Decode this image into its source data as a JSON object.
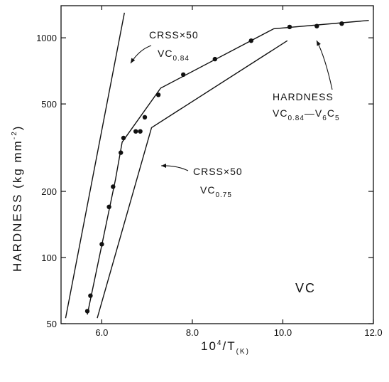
{
  "chart_data": {
    "type": "line",
    "xlabel": "10^4/T(K)",
    "ylabel": "HARDNESS (kg mm^-2)",
    "xlim": [
      5.1,
      12.0
    ],
    "ylim": [
      50,
      1400
    ],
    "y_scale": "log",
    "grid": false,
    "x_ticks": [
      {
        "value": 6.0,
        "label": "6.0"
      },
      {
        "value": 8.0,
        "label": "8.0"
      },
      {
        "value": 10.0,
        "label": "10.0"
      },
      {
        "value": 12.0,
        "label": "12.0"
      }
    ],
    "y_ticks": [
      {
        "value": 50,
        "label": "50"
      },
      {
        "value": 100,
        "label": "100"
      },
      {
        "value": 200,
        "label": "200"
      },
      {
        "value": 500,
        "label": "500"
      },
      {
        "value": 1000,
        "label": "1000"
      }
    ],
    "series": [
      {
        "id": "crss-vc084",
        "label_lines": [
          "CRSS×50",
          "VC0.84"
        ],
        "points": [
          [
            5.2,
            53
          ],
          [
            6.5,
            1300
          ]
        ]
      },
      {
        "id": "hardness",
        "label_lines": [
          "HARDNESS",
          "VC0.84—V6C5"
        ],
        "line": [
          [
            5.68,
            55
          ],
          [
            6.3,
            225
          ],
          [
            6.45,
            335
          ],
          [
            7.3,
            590
          ],
          [
            9.8,
            1100
          ],
          [
            11.9,
            1200
          ]
        ],
        "markers": [
          [
            5.68,
            57
          ],
          [
            5.75,
            67
          ],
          [
            6.0,
            115
          ],
          [
            6.16,
            170
          ],
          [
            6.25,
            210
          ],
          [
            6.42,
            300
          ],
          [
            6.48,
            350
          ],
          [
            6.75,
            375
          ],
          [
            6.85,
            375
          ],
          [
            6.95,
            435
          ],
          [
            7.25,
            550
          ],
          [
            7.8,
            680
          ],
          [
            8.5,
            800
          ],
          [
            9.3,
            970
          ],
          [
            10.15,
            1120
          ],
          [
            10.75,
            1130
          ],
          [
            11.3,
            1160
          ]
        ]
      },
      {
        "id": "crss-vc075",
        "label_lines": [
          "CRSS×50",
          "VC0.75"
        ],
        "points": [
          [
            5.9,
            53
          ],
          [
            7.1,
            390
          ],
          [
            10.1,
            970
          ]
        ]
      }
    ],
    "annotations": [
      {
        "text": "VC"
      }
    ]
  }
}
